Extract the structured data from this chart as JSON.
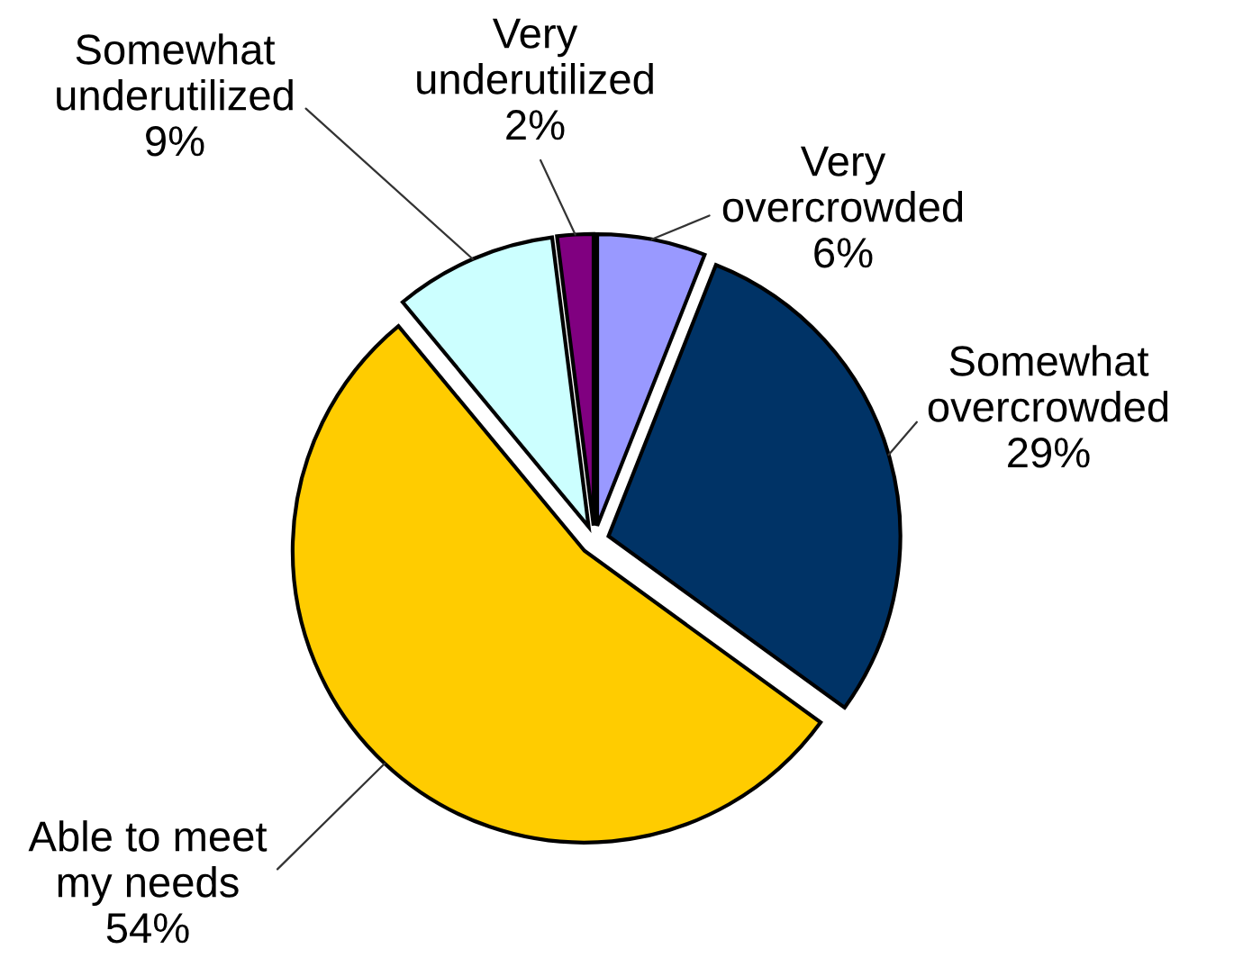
{
  "chart_data": {
    "type": "pie",
    "categories": [
      "Very overcrowded",
      "Somewhat overcrowded",
      "Able to meet my needs",
      "Somewhat underutilized",
      "Very underutilized"
    ],
    "values": [
      6,
      29,
      54,
      9,
      2
    ],
    "colors": [
      "#9999ff",
      "#003366",
      "#ffcc00",
      "#ccffff",
      "#800080"
    ],
    "value_labels": [
      "6%",
      "29%",
      "54%",
      "9%",
      "2%"
    ]
  }
}
